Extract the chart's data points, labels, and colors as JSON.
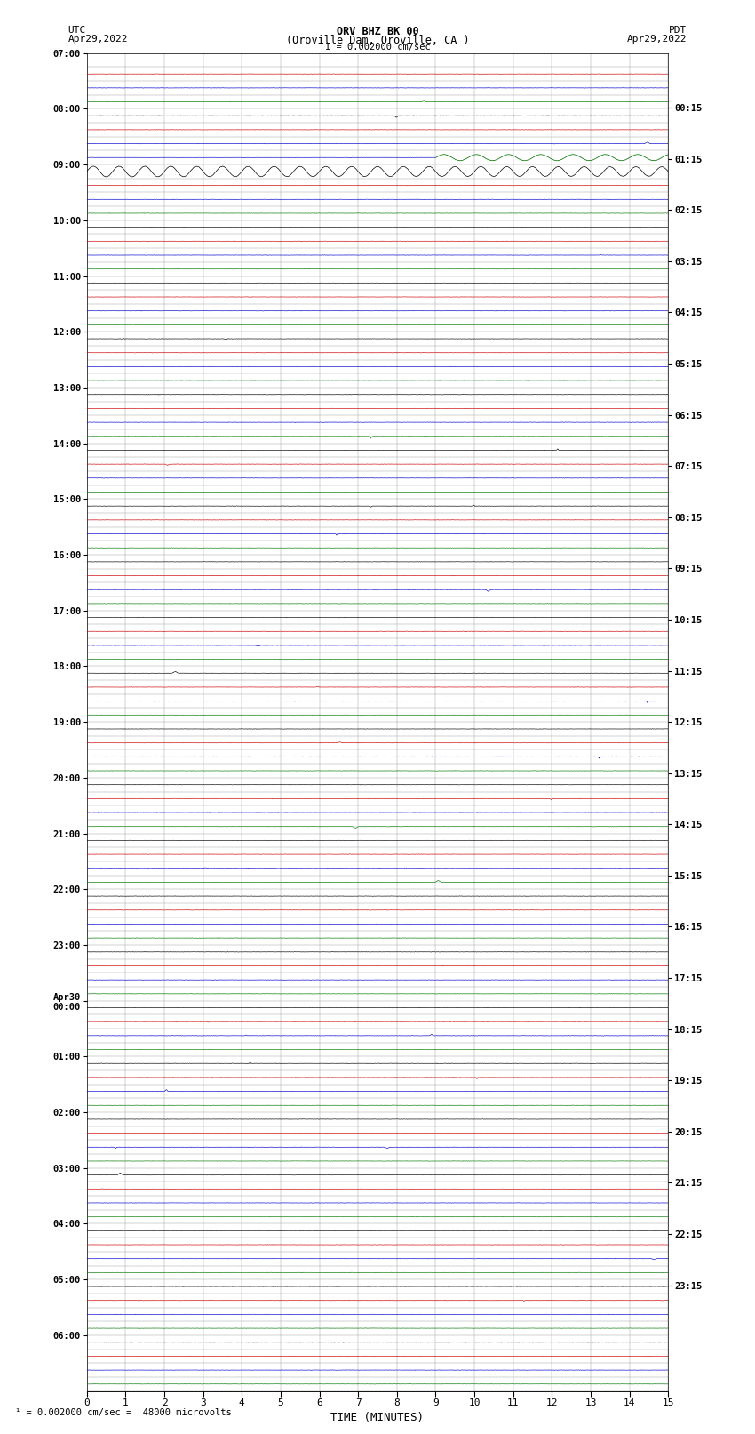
{
  "title_line1": "ORV BHZ BK 00",
  "title_line2": "(Oroville Dam, Oroville, CA )",
  "title_line3": "I = 0.002000 cm/sec",
  "label_left_top": "UTC",
  "label_left_date": "Apr29,2022",
  "label_right_top": "PDT",
  "label_right_date": "Apr29,2022",
  "footer": "¹ = 0.002000 cm/sec =  48000 microvolts",
  "xlabel": "TIME (MINUTES)",
  "xlim": [
    0,
    15
  ],
  "xticks": [
    0,
    1,
    2,
    3,
    4,
    5,
    6,
    7,
    8,
    9,
    10,
    11,
    12,
    13,
    14,
    15
  ],
  "background_color": "#ffffff",
  "trace_color_black": "#000000",
  "trace_color_blue": "#0000cc",
  "trace_color_red": "#cc0000",
  "trace_color_green": "#007700",
  "grid_color": "#aaaaaa",
  "num_rows": 96,
  "row_pattern": [
    "black",
    "red",
    "blue",
    "green"
  ],
  "utc_labels_hour": [
    "07:00",
    "08:00",
    "09:00",
    "10:00",
    "11:00",
    "12:00",
    "13:00",
    "14:00",
    "15:00",
    "16:00",
    "17:00",
    "18:00",
    "19:00",
    "20:00",
    "21:00",
    "22:00",
    "23:00",
    "Apr30\n00:00",
    "01:00",
    "02:00",
    "03:00",
    "04:00",
    "05:00",
    "06:00"
  ],
  "pdt_labels_hour": [
    "00:15",
    "01:15",
    "02:15",
    "03:15",
    "04:15",
    "05:15",
    "06:15",
    "07:15",
    "08:15",
    "09:15",
    "10:15",
    "11:15",
    "12:15",
    "13:15",
    "14:15",
    "15:15",
    "16:15",
    "17:15",
    "18:15",
    "19:15",
    "20:15",
    "21:15",
    "22:15",
    "23:15"
  ]
}
